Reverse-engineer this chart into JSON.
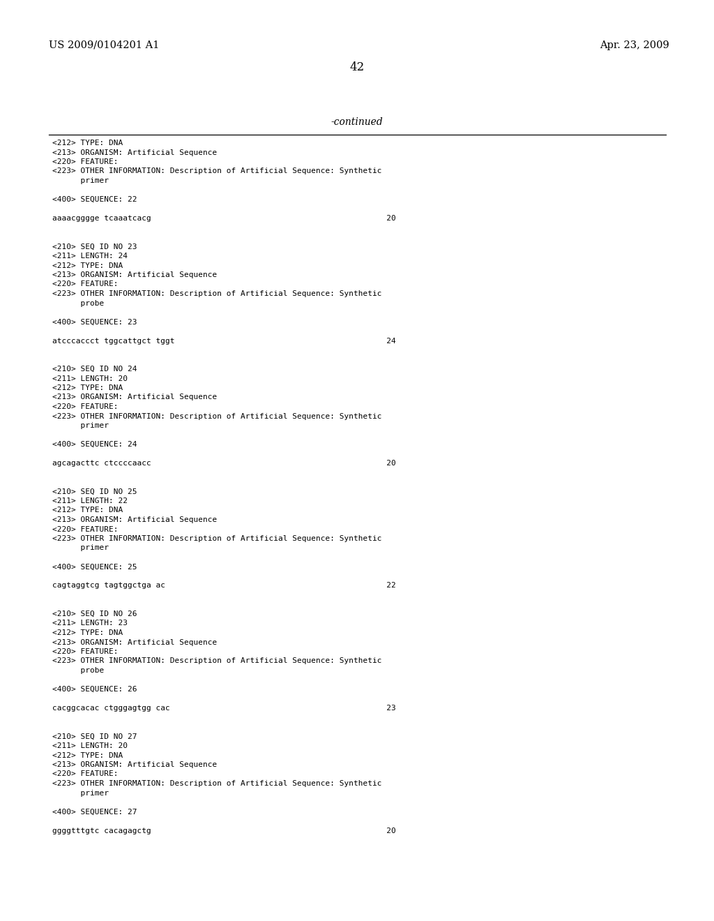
{
  "background_color": "#ffffff",
  "header_left": "US 2009/0104201 A1",
  "header_right": "Apr. 23, 2009",
  "page_number": "42",
  "continued_text": "-continued",
  "header_fontsize": 10.5,
  "page_num_fontsize": 12,
  "continued_fontsize": 10,
  "body_fontsize": 8.0,
  "content_lines": [
    "<212> TYPE: DNA",
    "<213> ORGANISM: Artificial Sequence",
    "<220> FEATURE:",
    "<223> OTHER INFORMATION: Description of Artificial Sequence: Synthetic",
    "      primer",
    "",
    "<400> SEQUENCE: 22",
    "",
    "aaaacgggge tcaaatcacg                                                  20",
    "",
    "",
    "<210> SEQ ID NO 23",
    "<211> LENGTH: 24",
    "<212> TYPE: DNA",
    "<213> ORGANISM: Artificial Sequence",
    "<220> FEATURE:",
    "<223> OTHER INFORMATION: Description of Artificial Sequence: Synthetic",
    "      probe",
    "",
    "<400> SEQUENCE: 23",
    "",
    "atcccaccct tggcattgct tggt                                             24",
    "",
    "",
    "<210> SEQ ID NO 24",
    "<211> LENGTH: 20",
    "<212> TYPE: DNA",
    "<213> ORGANISM: Artificial Sequence",
    "<220> FEATURE:",
    "<223> OTHER INFORMATION: Description of Artificial Sequence: Synthetic",
    "      primer",
    "",
    "<400> SEQUENCE: 24",
    "",
    "agcagacttc ctccccaacc                                                  20",
    "",
    "",
    "<210> SEQ ID NO 25",
    "<211> LENGTH: 22",
    "<212> TYPE: DNA",
    "<213> ORGANISM: Artificial Sequence",
    "<220> FEATURE:",
    "<223> OTHER INFORMATION: Description of Artificial Sequence: Synthetic",
    "      primer",
    "",
    "<400> SEQUENCE: 25",
    "",
    "cagtaggtcg tagtggctga ac                                               22",
    "",
    "",
    "<210> SEQ ID NO 26",
    "<211> LENGTH: 23",
    "<212> TYPE: DNA",
    "<213> ORGANISM: Artificial Sequence",
    "<220> FEATURE:",
    "<223> OTHER INFORMATION: Description of Artificial Sequence: Synthetic",
    "      probe",
    "",
    "<400> SEQUENCE: 26",
    "",
    "cacggcacac ctgggagtgg cac                                              23",
    "",
    "",
    "<210> SEQ ID NO 27",
    "<211> LENGTH: 20",
    "<212> TYPE: DNA",
    "<213> ORGANISM: Artificial Sequence",
    "<220> FEATURE:",
    "<223> OTHER INFORMATION: Description of Artificial Sequence: Synthetic",
    "      primer",
    "",
    "<400> SEQUENCE: 27",
    "",
    "ggggtttgtc cacagagctg                                                  20"
  ]
}
